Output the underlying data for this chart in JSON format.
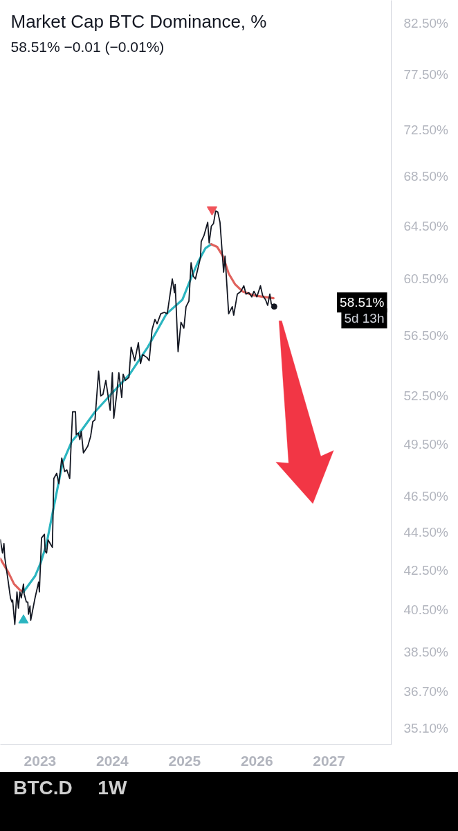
{
  "chart_data": {
    "type": "line",
    "title": "Market Cap BTC Dominance, %",
    "subtitle": "58.51% −0.01 (−0.01%)",
    "log": true,
    "xlim": [
      2022.45,
      2027.86
    ],
    "ylim": [
      34.4,
      84.8
    ],
    "xticks": [
      2023,
      2024,
      2025,
      2026,
      2027
    ],
    "yticks": [
      {
        "value": 82.5,
        "label": "82.50%"
      },
      {
        "value": 77.5,
        "label": "77.50%"
      },
      {
        "value": 72.5,
        "label": "72.50%"
      },
      {
        "value": 68.5,
        "label": "68.50%"
      },
      {
        "value": 64.5,
        "label": "64.50%"
      },
      {
        "value": 60.5,
        "label": "60.50%"
      },
      {
        "value": 56.5,
        "label": "56.50%"
      },
      {
        "value": 52.5,
        "label": "52.50%"
      },
      {
        "value": 49.5,
        "label": "49.50%"
      },
      {
        "value": 46.5,
        "label": "46.50%"
      },
      {
        "value": 44.5,
        "label": "44.50%"
      },
      {
        "value": 42.5,
        "label": "42.50%"
      },
      {
        "value": 40.5,
        "label": "40.50%"
      },
      {
        "value": 38.5,
        "label": "38.50%"
      },
      {
        "value": 36.7,
        "label": "36.70%"
      },
      {
        "value": 35.1,
        "label": "35.10%"
      }
    ],
    "series": [
      {
        "color": "#e0625d",
        "x": [
          2022.45,
          2022.56,
          2022.64,
          2022.72,
          2022.77
        ],
        "values": [
          43.1,
          42.4,
          41.8,
          41.5,
          41.4
        ]
      },
      {
        "color": "#2bb5c0",
        "x": [
          2022.77,
          2022.83,
          2022.93,
          2023.01,
          2023.09,
          2023.18,
          2023.31,
          2023.44,
          2023.58,
          2023.76,
          2023.98,
          2024.24,
          2024.49,
          2024.75,
          2024.97,
          2025.1,
          2025.19,
          2025.29,
          2025.37
        ],
        "values": [
          41.4,
          41.7,
          42.2,
          42.9,
          43.9,
          45.7,
          48.4,
          49.7,
          50.4,
          51.5,
          52.6,
          53.9,
          55.7,
          58.0,
          59.0,
          60.7,
          61.8,
          62.8,
          63.1
        ]
      },
      {
        "color": "#e0625d",
        "x": [
          2025.37,
          2025.45,
          2025.53,
          2025.61,
          2025.7,
          2025.8,
          2025.96,
          2026.09,
          2026.23
        ],
        "values": [
          63.1,
          62.9,
          62.2,
          60.9,
          60.1,
          59.6,
          59.3,
          59.2,
          59.1
        ]
      },
      {
        "color": "#131722",
        "x": [
          2022.45,
          2022.48,
          2022.5,
          2022.51,
          2022.56,
          2022.59,
          2022.61,
          2022.62,
          2022.65,
          2022.68,
          2022.7,
          2022.72,
          2022.74,
          2022.77,
          2022.78,
          2022.81,
          2022.83,
          2022.84,
          2022.86,
          2022.87,
          2022.93,
          2022.98,
          2022.99,
          2023.02,
          2023.06,
          2023.07,
          2023.09,
          2023.11,
          2023.14,
          2023.17,
          2023.18,
          2023.19,
          2023.23,
          2023.26,
          2023.3,
          2023.34,
          2023.37,
          2023.41,
          2023.43,
          2023.45,
          2023.49,
          2023.5,
          2023.53,
          2023.55,
          2023.57,
          2023.6,
          2023.66,
          2023.7,
          2023.73,
          2023.76,
          2023.81,
          2023.84,
          2023.87,
          2023.91,
          2023.97,
          2024.0,
          2024.02,
          2024.06,
          2024.09,
          2024.13,
          2024.15,
          2024.18,
          2024.23,
          2024.26,
          2024.31,
          2024.36,
          2024.39,
          2024.42,
          2024.48,
          2024.51,
          2024.55,
          2024.59,
          2024.62,
          2024.67,
          2024.72,
          2024.76,
          2024.83,
          2024.86,
          2024.87,
          2024.91,
          2024.95,
          2024.99,
          2025.02,
          2025.06,
          2025.09,
          2025.12,
          2025.15,
          2025.19,
          2025.22,
          2025.23,
          2025.27,
          2025.32,
          2025.34,
          2025.37,
          2025.4,
          2025.43,
          2025.46,
          2025.49,
          2025.54,
          2025.56,
          2025.61,
          2025.66,
          2025.68,
          2025.73,
          2025.78,
          2025.82,
          2025.85,
          2025.89,
          2025.93,
          2025.96,
          2026.0,
          2026.05,
          2026.08,
          2026.12,
          2026.15,
          2026.18,
          2026.2,
          2026.24
        ],
        "values": [
          44.1,
          43.4,
          43.9,
          43.2,
          41.9,
          41.1,
          40.9,
          41.0,
          39.8,
          41.4,
          40.6,
          41.4,
          41.1,
          41.8,
          41.3,
          40.9,
          40.9,
          40.3,
          40.7,
          40.0,
          41.1,
          41.9,
          41.4,
          44.2,
          44.4,
          43.5,
          43.4,
          44.1,
          43.9,
          43.7,
          45.6,
          47.5,
          47.8,
          47.2,
          48.7,
          47.9,
          48.0,
          47.5,
          49.6,
          51.5,
          51.5,
          50.1,
          50.2,
          49.8,
          50.3,
          49.0,
          49.4,
          50.0,
          50.9,
          51.0,
          54.1,
          52.5,
          52.6,
          53.5,
          51.6,
          54.0,
          51.1,
          52.6,
          54.0,
          52.4,
          53.9,
          53.5,
          53.7,
          55.7,
          54.8,
          56.0,
          54.6,
          55.2,
          55.0,
          54.8,
          56.9,
          57.6,
          57.3,
          58.0,
          58.1,
          58.0,
          60.5,
          59.5,
          60.1,
          55.4,
          57.4,
          57.0,
          58.5,
          58.9,
          61.7,
          60.7,
          60.5,
          61.4,
          62.1,
          63.3,
          63.8,
          64.8,
          63.2,
          64.5,
          64.7,
          65.7,
          65.6,
          64.8,
          61.0,
          62.2,
          58.0,
          58.5,
          57.9,
          59.4,
          59.6,
          60.0,
          59.4,
          59.5,
          59.2,
          59.6,
          59.2,
          60.0,
          59.3,
          59.0,
          58.6,
          59.4,
          58.7,
          58.51
        ]
      },
      {
        "type": "scatter",
        "color": "#f0545a",
        "marker": "triangle_down",
        "x": [
          2025.38
        ],
        "values": [
          65.8
        ]
      },
      {
        "type": "scatter",
        "color": "#2bb5c0",
        "marker": "triangle",
        "x": [
          2022.77
        ],
        "values": [
          40.0
        ]
      },
      {
        "type": "scatter",
        "color": "#131722",
        "marker": "circle",
        "x": [
          2026.24
        ],
        "values": [
          58.51
        ]
      }
    ],
    "annotations": [
      "58.51%",
      "5d 13h",
      "BTC.D",
      "1W"
    ]
  }
}
